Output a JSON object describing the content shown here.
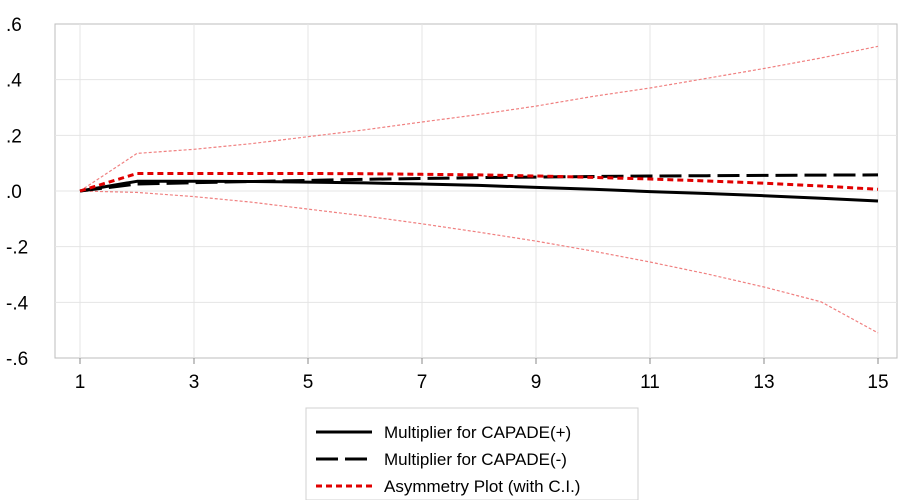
{
  "chart_data": {
    "type": "line",
    "title": "",
    "xlabel": "",
    "ylabel": "",
    "x": [
      1,
      2,
      3,
      4,
      5,
      6,
      7,
      8,
      9,
      10,
      11,
      12,
      13,
      14,
      15
    ],
    "xticks": [
      1,
      3,
      5,
      7,
      9,
      11,
      13,
      15
    ],
    "xtick_labels": [
      "1",
      "3",
      "5",
      "7",
      "9",
      "11",
      "13",
      "15"
    ],
    "ylim": [
      -0.6,
      0.6
    ],
    "yticks": [
      -0.6,
      -0.4,
      -0.2,
      0.0,
      0.2,
      0.4,
      0.6
    ],
    "ytick_labels": [
      "-.6",
      "-.4",
      "-.2",
      ".0",
      ".2",
      ".4",
      ".6"
    ],
    "grid": true,
    "legend_position": "bottom",
    "series": [
      {
        "name": "Multiplier for CAPADE(+)",
        "style": "solid",
        "color": "#000000",
        "values": [
          0.0,
          0.035,
          0.035,
          0.034,
          0.032,
          0.029,
          0.025,
          0.02,
          0.013,
          0.006,
          -0.002,
          -0.009,
          -0.017,
          -0.026,
          -0.036
        ]
      },
      {
        "name": "Multiplier for CAPADE(-)",
        "style": "long-dash",
        "color": "#000000",
        "values": [
          0.0,
          0.025,
          0.03,
          0.034,
          0.038,
          0.042,
          0.045,
          0.048,
          0.05,
          0.052,
          0.054,
          0.055,
          0.056,
          0.057,
          0.058
        ]
      },
      {
        "name": "Asymmetry Plot (with C.I.)",
        "style": "short-dash",
        "color": "#e00000",
        "values": [
          0.0,
          0.063,
          0.063,
          0.063,
          0.063,
          0.062,
          0.06,
          0.058,
          0.054,
          0.049,
          0.043,
          0.036,
          0.028,
          0.018,
          0.006
        ]
      },
      {
        "name": "",
        "role": "upper-ci",
        "style": "thin-dash",
        "color": "#f08080",
        "values": [
          0.0,
          0.135,
          0.15,
          0.17,
          0.195,
          0.22,
          0.248,
          0.275,
          0.305,
          0.34,
          0.37,
          0.405,
          0.44,
          0.478,
          0.52
        ]
      },
      {
        "name": "",
        "role": "lower-ci",
        "style": "thin-dash",
        "color": "#f08080",
        "values": [
          0.0,
          -0.005,
          -0.02,
          -0.04,
          -0.065,
          -0.09,
          -0.118,
          -0.148,
          -0.18,
          -0.216,
          -0.255,
          -0.298,
          -0.345,
          -0.398,
          -0.51
        ]
      }
    ]
  }
}
